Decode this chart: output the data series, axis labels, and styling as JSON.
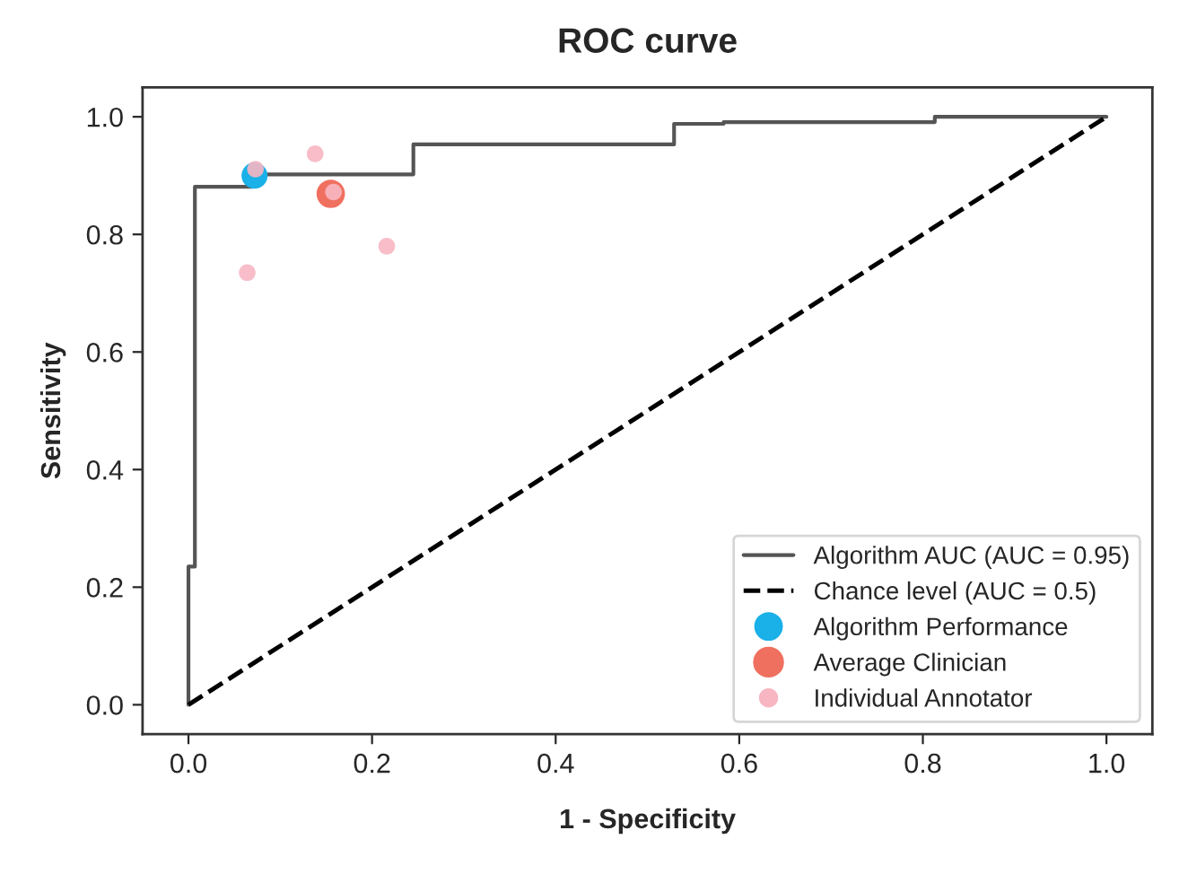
{
  "chart_data": {
    "type": "line",
    "title": "ROC curve",
    "xlabel": "1 - Specificity",
    "ylabel": "Sensitivity",
    "xlim": [
      -0.05,
      1.05
    ],
    "ylim": [
      -0.05,
      1.05
    ],
    "xticks": [
      {
        "value": 0,
        "label": "0.0"
      },
      0.2,
      0.4,
      0.6,
      0.8,
      {
        "value": 1,
        "label": "1.0"
      }
    ],
    "yticks": [
      {
        "value": 0,
        "label": "0.0"
      },
      0.2,
      0.4,
      0.6,
      0.8,
      {
        "value": 1,
        "label": "1.0"
      }
    ],
    "grid": false,
    "legend": "bottom right",
    "series": [
      {
        "name": "Algorithm AUC (AUC = 0.95)",
        "type": "step",
        "color": "#555555",
        "line_style": "solid",
        "x": [
          0,
          0,
          0.007,
          0.007,
          0.07,
          0.07,
          0.245,
          0.245,
          0.529,
          0.529,
          0.583,
          0.583,
          0.813,
          0.813,
          1.0
        ],
        "values": [
          0,
          0.235,
          0.235,
          0.881,
          0.881,
          0.902,
          0.902,
          0.953,
          0.953,
          0.988,
          0.988,
          0.991,
          0.991,
          1.0,
          1.0
        ]
      },
      {
        "name": "Chance level (AUC = 0.5)",
        "color": "#000000",
        "line_style": "dashed",
        "x": [
          0,
          1
        ],
        "values": [
          0,
          1
        ]
      },
      {
        "name": "Algorithm Performance",
        "type": "scatter",
        "color": "#1ab0e8",
        "x": [
          0.072
        ],
        "values": [
          0.9
        ]
      },
      {
        "name": "Average Clinician",
        "type": "scatter",
        "color": "#f07060",
        "x": [
          0.155
        ],
        "values": [
          0.869
        ]
      },
      {
        "name": "Individual Annotator",
        "type": "scatter",
        "color": "#f7b6c2",
        "x": [
          0.073,
          0.138,
          0.158,
          0.216,
          0.064
        ],
        "values": [
          0.911,
          0.937,
          0.872,
          0.78,
          0.735
        ]
      }
    ]
  }
}
